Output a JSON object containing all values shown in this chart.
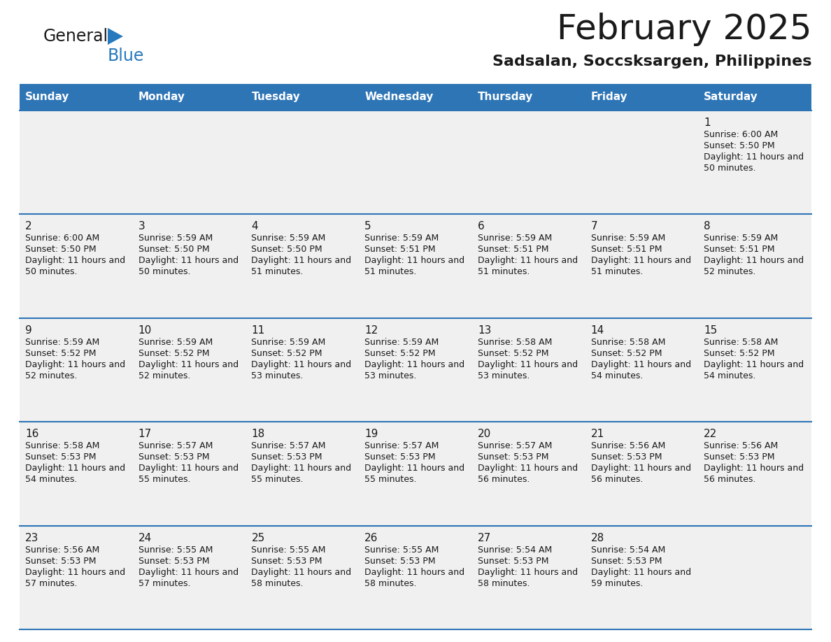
{
  "title": "February 2025",
  "subtitle": "Sadsalan, Soccsksargen, Philippines",
  "header_bg": "#2e75b6",
  "header_text_color": "#ffffff",
  "row_sep_color": "#2e75b6",
  "cell_bg": "#f0f0f0",
  "day_headers": [
    "Sunday",
    "Monday",
    "Tuesday",
    "Wednesday",
    "Thursday",
    "Friday",
    "Saturday"
  ],
  "days": [
    {
      "day": 1,
      "col": 6,
      "row": 0,
      "sunrise": "6:00 AM",
      "sunset": "5:50 PM",
      "daylight": "11 hours and 50 minutes."
    },
    {
      "day": 2,
      "col": 0,
      "row": 1,
      "sunrise": "6:00 AM",
      "sunset": "5:50 PM",
      "daylight": "11 hours and 50 minutes."
    },
    {
      "day": 3,
      "col": 1,
      "row": 1,
      "sunrise": "5:59 AM",
      "sunset": "5:50 PM",
      "daylight": "11 hours and 50 minutes."
    },
    {
      "day": 4,
      "col": 2,
      "row": 1,
      "sunrise": "5:59 AM",
      "sunset": "5:50 PM",
      "daylight": "11 hours and 51 minutes."
    },
    {
      "day": 5,
      "col": 3,
      "row": 1,
      "sunrise": "5:59 AM",
      "sunset": "5:51 PM",
      "daylight": "11 hours and 51 minutes."
    },
    {
      "day": 6,
      "col": 4,
      "row": 1,
      "sunrise": "5:59 AM",
      "sunset": "5:51 PM",
      "daylight": "11 hours and 51 minutes."
    },
    {
      "day": 7,
      "col": 5,
      "row": 1,
      "sunrise": "5:59 AM",
      "sunset": "5:51 PM",
      "daylight": "11 hours and 51 minutes."
    },
    {
      "day": 8,
      "col": 6,
      "row": 1,
      "sunrise": "5:59 AM",
      "sunset": "5:51 PM",
      "daylight": "11 hours and 52 minutes."
    },
    {
      "day": 9,
      "col": 0,
      "row": 2,
      "sunrise": "5:59 AM",
      "sunset": "5:52 PM",
      "daylight": "11 hours and 52 minutes."
    },
    {
      "day": 10,
      "col": 1,
      "row": 2,
      "sunrise": "5:59 AM",
      "sunset": "5:52 PM",
      "daylight": "11 hours and 52 minutes."
    },
    {
      "day": 11,
      "col": 2,
      "row": 2,
      "sunrise": "5:59 AM",
      "sunset": "5:52 PM",
      "daylight": "11 hours and 53 minutes."
    },
    {
      "day": 12,
      "col": 3,
      "row": 2,
      "sunrise": "5:59 AM",
      "sunset": "5:52 PM",
      "daylight": "11 hours and 53 minutes."
    },
    {
      "day": 13,
      "col": 4,
      "row": 2,
      "sunrise": "5:58 AM",
      "sunset": "5:52 PM",
      "daylight": "11 hours and 53 minutes."
    },
    {
      "day": 14,
      "col": 5,
      "row": 2,
      "sunrise": "5:58 AM",
      "sunset": "5:52 PM",
      "daylight": "11 hours and 54 minutes."
    },
    {
      "day": 15,
      "col": 6,
      "row": 2,
      "sunrise": "5:58 AM",
      "sunset": "5:52 PM",
      "daylight": "11 hours and 54 minutes."
    },
    {
      "day": 16,
      "col": 0,
      "row": 3,
      "sunrise": "5:58 AM",
      "sunset": "5:53 PM",
      "daylight": "11 hours and 54 minutes."
    },
    {
      "day": 17,
      "col": 1,
      "row": 3,
      "sunrise": "5:57 AM",
      "sunset": "5:53 PM",
      "daylight": "11 hours and 55 minutes."
    },
    {
      "day": 18,
      "col": 2,
      "row": 3,
      "sunrise": "5:57 AM",
      "sunset": "5:53 PM",
      "daylight": "11 hours and 55 minutes."
    },
    {
      "day": 19,
      "col": 3,
      "row": 3,
      "sunrise": "5:57 AM",
      "sunset": "5:53 PM",
      "daylight": "11 hours and 55 minutes."
    },
    {
      "day": 20,
      "col": 4,
      "row": 3,
      "sunrise": "5:57 AM",
      "sunset": "5:53 PM",
      "daylight": "11 hours and 56 minutes."
    },
    {
      "day": 21,
      "col": 5,
      "row": 3,
      "sunrise": "5:56 AM",
      "sunset": "5:53 PM",
      "daylight": "11 hours and 56 minutes."
    },
    {
      "day": 22,
      "col": 6,
      "row": 3,
      "sunrise": "5:56 AM",
      "sunset": "5:53 PM",
      "daylight": "11 hours and 56 minutes."
    },
    {
      "day": 23,
      "col": 0,
      "row": 4,
      "sunrise": "5:56 AM",
      "sunset": "5:53 PM",
      "daylight": "11 hours and 57 minutes."
    },
    {
      "day": 24,
      "col": 1,
      "row": 4,
      "sunrise": "5:55 AM",
      "sunset": "5:53 PM",
      "daylight": "11 hours and 57 minutes."
    },
    {
      "day": 25,
      "col": 2,
      "row": 4,
      "sunrise": "5:55 AM",
      "sunset": "5:53 PM",
      "daylight": "11 hours and 58 minutes."
    },
    {
      "day": 26,
      "col": 3,
      "row": 4,
      "sunrise": "5:55 AM",
      "sunset": "5:53 PM",
      "daylight": "11 hours and 58 minutes."
    },
    {
      "day": 27,
      "col": 4,
      "row": 4,
      "sunrise": "5:54 AM",
      "sunset": "5:53 PM",
      "daylight": "11 hours and 58 minutes."
    },
    {
      "day": 28,
      "col": 5,
      "row": 4,
      "sunrise": "5:54 AM",
      "sunset": "5:53 PM",
      "daylight": "11 hours and 59 minutes."
    }
  ],
  "num_rows": 5,
  "logo_text1": "General",
  "logo_text2": "Blue",
  "logo_color1": "#1a1a1a",
  "logo_color2": "#2779bd",
  "logo_tri_color": "#2779bd",
  "title_color": "#1a1a1a",
  "subtitle_color": "#1a1a1a"
}
